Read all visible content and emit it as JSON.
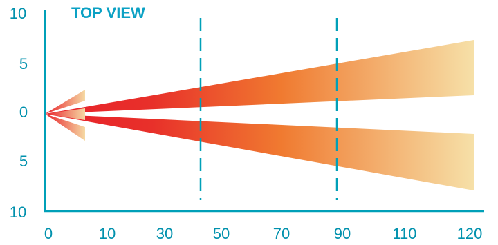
{
  "title": "TOP VIEW",
  "colors": {
    "axis": "#00a0b8",
    "text": "#0091ad",
    "title": "#0ba1c4",
    "beam_near": "#e8202a",
    "beam_mid": "#f07a30",
    "beam_far": "#f6e0a8"
  },
  "axes": {
    "x_ticks": [
      "0",
      "10",
      "30",
      "50",
      "70",
      "90",
      "110",
      "120"
    ],
    "y_ticks": [
      "10",
      "5",
      "0",
      "5",
      "10"
    ]
  },
  "markers": {
    "style": "dashed",
    "count": 2
  },
  "beams": {
    "count": 2,
    "origin_x": "0",
    "origin_y": "0",
    "gradient": "red-to-pale-yellow"
  },
  "origin_arrow": {
    "icon": "arrow-left-icon",
    "direction": "left"
  }
}
